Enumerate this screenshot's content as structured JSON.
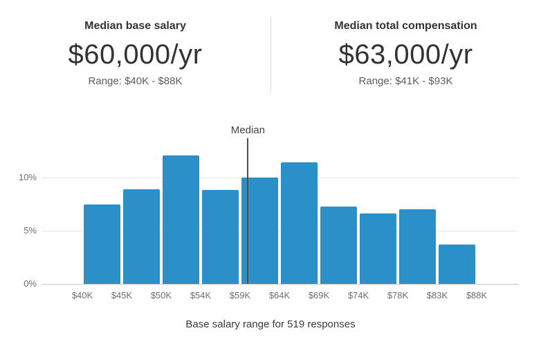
{
  "header": {
    "base": {
      "title": "Median base salary",
      "amount": "$60,000/yr",
      "range": "Range: $40K - $88K"
    },
    "total": {
      "title": "Median total compensation",
      "amount": "$63,000/yr",
      "range": "Range: $41K - $93K"
    }
  },
  "chart_data": {
    "type": "bar",
    "title": "",
    "xlabel": "",
    "ylabel": "",
    "categories": [
      "$40K",
      "$45K",
      "$50K",
      "$54K",
      "$59K",
      "$64K",
      "$69K",
      "$74K",
      "$78K",
      "$83K",
      "$88K"
    ],
    "tick_values": [
      40,
      45,
      50,
      54,
      59,
      64,
      69,
      74,
      78,
      83,
      88
    ],
    "values": [
      7.5,
      8.9,
      12.1,
      8.8,
      10.0,
      11.4,
      7.3,
      6.6,
      7.0,
      3.7
    ],
    "ytick_labels": [
      "0%",
      "5%",
      "10%"
    ],
    "ytick_values": [
      0,
      5,
      10
    ],
    "ylim": [
      0,
      13
    ],
    "grid": "horizontal",
    "legend": "none",
    "median_label": "Median",
    "median_value": 60
  },
  "caption": "Base salary range for 519 responses",
  "colors": {
    "bar": "#2b90c8",
    "median_line": "#4d4d4d",
    "gridline": "#e8e8e8",
    "axis_line": "#c9c9c9",
    "text_dark": "#333333",
    "text_muted": "#6e6e6e"
  }
}
